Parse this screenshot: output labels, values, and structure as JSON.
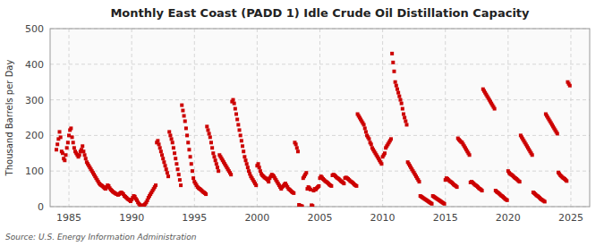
{
  "chart_data": {
    "type": "scatter",
    "title": "Monthly East Coast (PADD 1) Idle Crude Oil Distillation Capacity",
    "ylabel": "Thousand Barrels per Day",
    "source": "Source: U.S. Energy Information Administration",
    "color": "#cc0000",
    "marker": "square",
    "grid": true,
    "xlim": [
      1983.5,
      2026.5
    ],
    "ylim": [
      0,
      500
    ],
    "xticks": [
      1985,
      1990,
      1995,
      2000,
      2005,
      2010,
      2015,
      2020,
      2025
    ],
    "yticks": [
      0,
      100,
      200,
      300,
      400,
      500
    ],
    "x": [
      1984,
      1984.0833333333333,
      1984.1666666666667,
      1984.25,
      1984.3333333333333,
      1984.4166666666667,
      1984.5,
      1984.5833333333333,
      1984.6666666666667,
      1984.75,
      1984.8333333333333,
      1984.9166666666667,
      1985,
      1985.0833333333333,
      1985.1666666666667,
      1985.25,
      1985.3333333333333,
      1985.4166666666667,
      1985.5,
      1985.5833333333333,
      1985.6666666666667,
      1985.75,
      1985.8333333333333,
      1985.9166666666667,
      1986,
      1986.0833333333333,
      1986.1666666666667,
      1986.25,
      1986.3333333333333,
      1986.4166666666667,
      1986.5,
      1986.5833333333333,
      1986.6666666666667,
      1986.75,
      1986.8333333333333,
      1986.9166666666667,
      1987,
      1987.0833333333333,
      1987.1666666666667,
      1987.25,
      1987.3333333333333,
      1987.4166666666667,
      1987.5,
      1987.5833333333333,
      1987.6666666666667,
      1987.75,
      1987.8333333333333,
      1987.9166666666667,
      1988,
      1988.0833333333333,
      1988.1666666666667,
      1988.25,
      1988.3333333333333,
      1988.4166666666667,
      1988.5,
      1988.5833333333333,
      1988.6666666666667,
      1988.75,
      1988.8333333333333,
      1988.9166666666667,
      1989,
      1989.0833333333333,
      1989.1666666666667,
      1989.25,
      1989.3333333333333,
      1989.4166666666667,
      1989.5,
      1989.5833333333333,
      1989.6666666666667,
      1989.75,
      1989.8333333333333,
      1989.9166666666667,
      1990,
      1990.0833333333333,
      1990.1666666666667,
      1990.25,
      1990.3333333333333,
      1990.4166666666667,
      1990.5,
      1990.5833333333333,
      1990.6666666666667,
      1990.75,
      1990.8333333333333,
      1990.9166666666667,
      1991,
      1991.0833333333333,
      1991.1666666666667,
      1991.25,
      1991.3333333333333,
      1991.4166666666667,
      1991.5,
      1991.5833333333333,
      1991.6666666666667,
      1991.75,
      1991.8333333333333,
      1991.9166666666667,
      1992,
      1992.0833333333333,
      1992.1666666666667,
      1992.25,
      1992.3333333333333,
      1992.4166666666667,
      1992.5,
      1992.5833333333333,
      1992.6666666666667,
      1992.75,
      1992.8333333333333,
      1992.9166666666667,
      1993,
      1993.0833333333333,
      1993.1666666666667,
      1993.25,
      1993.3333333333333,
      1993.4166666666667,
      1993.5,
      1993.5833333333333,
      1993.6666666666667,
      1993.75,
      1993.8333333333333,
      1993.9166666666667,
      1994,
      1994.0833333333333,
      1994.1666666666667,
      1994.25,
      1994.3333333333333,
      1994.4166666666667,
      1994.5,
      1994.5833333333333,
      1994.6666666666667,
      1994.75,
      1994.8333333333333,
      1994.9166666666667,
      1995,
      1995.0833333333333,
      1995.1666666666667,
      1995.25,
      1995.3333333333333,
      1995.4166666666667,
      1995.5,
      1995.5833333333333,
      1995.6666666666667,
      1995.75,
      1995.8333333333333,
      1995.9166666666667,
      1996,
      1996.0833333333333,
      1996.1666666666667,
      1996.25,
      1996.3333333333333,
      1996.4166666666667,
      1996.5,
      1996.5833333333333,
      1996.6666666666667,
      1996.75,
      1996.8333333333333,
      1996.9166666666667,
      1997,
      1997.0833333333333,
      1997.1666666666667,
      1997.25,
      1997.3333333333333,
      1997.4166666666667,
      1997.5,
      1997.5833333333333,
      1997.6666666666667,
      1997.75,
      1997.8333333333333,
      1997.9166666666667,
      1998,
      1998.0833333333333,
      1998.1666666666667,
      1998.25,
      1998.3333333333333,
      1998.4166666666667,
      1998.5,
      1998.5833333333333,
      1998.6666666666667,
      1998.75,
      1998.8333333333333,
      1998.9166666666667,
      1999,
      1999.0833333333333,
      1999.1666666666667,
      1999.25,
      1999.3333333333333,
      1999.4166666666667,
      1999.5,
      1999.5833333333333,
      1999.6666666666667,
      1999.75,
      1999.8333333333333,
      1999.9166666666667,
      2000,
      2000.0833333333333,
      2000.1666666666667,
      2000.25,
      2000.3333333333333,
      2000.4166666666667,
      2000.5,
      2000.5833333333333,
      2000.6666666666667,
      2000.75,
      2000.8333333333333,
      2000.9166666666667,
      2001,
      2001.0833333333333,
      2001.1666666666667,
      2001.25,
      2001.3333333333333,
      2001.4166666666667,
      2001.5,
      2001.5833333333333,
      2001.6666666666667,
      2001.75,
      2001.8333333333333,
      2001.9166666666667,
      2002,
      2002.0833333333333,
      2002.1666666666667,
      2002.25,
      2002.3333333333333,
      2002.4166666666667,
      2002.5,
      2002.5833333333333,
      2002.6666666666667,
      2002.75,
      2002.8333333333333,
      2002.9166666666667,
      2003,
      2003.0833333333333,
      2003.1666666666667,
      2003.25,
      2003.3333333333333,
      2003.4166666666667,
      2003.5,
      2003.5833333333333,
      2003.6666666666667,
      2003.75,
      2003.8333333333333,
      2003.9166666666667,
      2004,
      2004.0833333333333,
      2004.1666666666667,
      2004.25,
      2004.3333333333333,
      2004.4166666666667,
      2004.5,
      2004.5833333333333,
      2004.6666666666667,
      2004.75,
      2004.8333333333333,
      2004.9166666666667,
      2005,
      2005.0833333333333,
      2005.1666666666667,
      2005.25,
      2005.3333333333333,
      2005.4166666666667,
      2005.5,
      2005.5833333333333,
      2005.6666666666667,
      2005.75,
      2005.8333333333333,
      2005.9166666666667,
      2006,
      2006.0833333333333,
      2006.1666666666667,
      2006.25,
      2006.3333333333333,
      2006.4166666666667,
      2006.5,
      2006.5833333333333,
      2006.6666666666667,
      2006.75,
      2006.8333333333333,
      2006.9166666666667,
      2007,
      2007.0833333333333,
      2007.1666666666667,
      2007.25,
      2007.3333333333333,
      2007.4166666666667,
      2007.5,
      2007.5833333333333,
      2007.6666666666667,
      2007.75,
      2007.8333333333333,
      2007.9166666666667,
      2008,
      2008.0833333333333,
      2008.1666666666667,
      2008.25,
      2008.3333333333333,
      2008.4166666666667,
      2008.5,
      2008.5833333333333,
      2008.6666666666667,
      2008.75,
      2008.8333333333333,
      2008.9166666666667,
      2009,
      2009.0833333333333,
      2009.1666666666667,
      2009.25,
      2009.3333333333333,
      2009.4166666666667,
      2009.5,
      2009.5833333333333,
      2009.6666666666667,
      2009.75,
      2009.8333333333333,
      2009.9166666666667,
      2010,
      2010.0833333333333,
      2010.1666666666667,
      2010.25,
      2010.3333333333333,
      2010.4166666666667,
      2010.5,
      2010.5833333333333,
      2010.6666666666667,
      2010.75,
      2010.8333333333333,
      2010.9166666666667,
      2011,
      2011.0833333333333,
      2011.1666666666667,
      2011.25,
      2011.3333333333333,
      2011.4166666666667,
      2011.5,
      2011.5833333333333,
      2011.6666666666667,
      2011.75,
      2011.8333333333333,
      2011.9166666666667,
      2012,
      2012.0833333333333,
      2012.1666666666667,
      2012.25,
      2012.3333333333333,
      2012.4166666666667,
      2012.5,
      2012.5833333333333,
      2012.6666666666667,
      2012.75,
      2012.8333333333333,
      2012.9166666666667,
      2013,
      2013.0833333333333,
      2013.1666666666667,
      2013.25,
      2013.3333333333333,
      2013.4166666666667,
      2013.5,
      2013.5833333333333,
      2013.6666666666667,
      2013.75,
      2013.8333333333333,
      2013.9166666666667,
      2014,
      2014.0833333333333,
      2014.1666666666667,
      2014.25,
      2014.3333333333333,
      2014.4166666666667,
      2014.5,
      2014.5833333333333,
      2014.6666666666667,
      2014.75,
      2014.8333333333333,
      2014.9166666666667,
      2015,
      2015.0833333333333,
      2015.1666666666667,
      2015.25,
      2015.3333333333333,
      2015.4166666666667,
      2015.5,
      2015.5833333333333,
      2015.6666666666667,
      2015.75,
      2015.8333333333333,
      2015.9166666666667,
      2016,
      2016.0833333333333,
      2016.1666666666667,
      2016.25,
      2016.3333333333333,
      2016.4166666666667,
      2016.5,
      2016.5833333333333,
      2016.6666666666667,
      2016.75,
      2016.8333333333333,
      2016.9166666666667,
      2017,
      2017.0833333333333,
      2017.1666666666667,
      2017.25,
      2017.3333333333333,
      2017.4166666666667,
      2017.5,
      2017.5833333333333,
      2017.6666666666667,
      2017.75,
      2017.8333333333333,
      2017.9166666666667,
      2018,
      2018.0833333333333,
      2018.1666666666667,
      2018.25,
      2018.3333333333333,
      2018.4166666666667,
      2018.5,
      2018.5833333333333,
      2018.6666666666667,
      2018.75,
      2018.8333333333333,
      2018.9166666666667,
      2019,
      2019.0833333333333,
      2019.1666666666667,
      2019.25,
      2019.3333333333333,
      2019.4166666666667,
      2019.5,
      2019.5833333333333,
      2019.6666666666667,
      2019.75,
      2019.8333333333333,
      2019.9166666666667,
      2020,
      2020.0833333333333,
      2020.1666666666667,
      2020.25,
      2020.3333333333333,
      2020.4166666666667,
      2020.5,
      2020.5833333333333,
      2020.6666666666667,
      2020.75,
      2020.8333333333333,
      2020.9166666666667,
      2021,
      2021.0833333333333,
      2021.1666666666667,
      2021.25,
      2021.3333333333333,
      2021.4166666666667,
      2021.5,
      2021.5833333333333,
      2021.6666666666667,
      2021.75,
      2021.8333333333333,
      2021.9166666666667,
      2022,
      2022.0833333333333,
      2022.1666666666667,
      2022.25,
      2022.3333333333333,
      2022.4166666666667,
      2022.5,
      2022.5833333333333,
      2022.6666666666667,
      2022.75,
      2022.8333333333333,
      2022.9166666666667,
      2023,
      2023.0833333333333,
      2023.1666666666667,
      2023.25,
      2023.3333333333333,
      2023.4166666666667,
      2023.5,
      2023.5833333333333,
      2023.6666666666667,
      2023.75,
      2023.8333333333333,
      2023.9166666666667,
      2024,
      2024.0833333333333,
      2024.1666666666667,
      2024.25,
      2024.3333333333333,
      2024.4166666666667,
      2024.5,
      2024.5833333333333,
      2024.6666666666667,
      2024.75,
      2024.8333333333333,
      2024.9166666666667
    ],
    "values": [
      160,
      175,
      190,
      210,
      195,
      155,
      150,
      135,
      130,
      145,
      165,
      180,
      200,
      215,
      220,
      195,
      180,
      165,
      155,
      150,
      145,
      140,
      145,
      155,
      160,
      170,
      155,
      145,
      135,
      125,
      120,
      115,
      110,
      105,
      100,
      95,
      90,
      85,
      80,
      75,
      70,
      65,
      62,
      60,
      58,
      55,
      52,
      50,
      55,
      60,
      58,
      52,
      48,
      45,
      42,
      40,
      38,
      36,
      35,
      33,
      35,
      38,
      40,
      38,
      35,
      30,
      28,
      25,
      22,
      20,
      18,
      15,
      20,
      25,
      30,
      28,
      22,
      18,
      12,
      8,
      5,
      3,
      2,
      1,
      5,
      8,
      12,
      18,
      25,
      30,
      35,
      40,
      45,
      50,
      55,
      60,
      180,
      185,
      175,
      165,
      155,
      145,
      135,
      125,
      115,
      105,
      95,
      85,
      210,
      200,
      190,
      180,
      165,
      150,
      135,
      120,
      105,
      90,
      75,
      60,
      285,
      270,
      255,
      240,
      220,
      200,
      180,
      160,
      140,
      120,
      100,
      80,
      70,
      65,
      60,
      55,
      52,
      50,
      48,
      45,
      42,
      40,
      38,
      35,
      225,
      215,
      205,
      195,
      180,
      165,
      150,
      140,
      130,
      120,
      110,
      100,
      145,
      140,
      135,
      130,
      125,
      120,
      115,
      110,
      105,
      100,
      95,
      90,
      295,
      300,
      290,
      275,
      260,
      245,
      230,
      215,
      200,
      185,
      170,
      155,
      140,
      130,
      120,
      110,
      100,
      92,
      85,
      80,
      75,
      70,
      65,
      60,
      115,
      120,
      110,
      100,
      92,
      88,
      85,
      82,
      80,
      78,
      75,
      70,
      80,
      85,
      90,
      88,
      85,
      80,
      75,
      70,
      65,
      60,
      55,
      50,
      55,
      58,
      62,
      65,
      60,
      55,
      50,
      48,
      45,
      42,
      40,
      38,
      180,
      175,
      165,
      155,
      5,
      3,
      2,
      1,
      80,
      85,
      90,
      95,
      50,
      55,
      52,
      48,
      4,
      2,
      45,
      50,
      48,
      52,
      55,
      58,
      80,
      85,
      82,
      78,
      75,
      72,
      70,
      68,
      65,
      62,
      60,
      58,
      88,
      90,
      88,
      85,
      82,
      80,
      78,
      75,
      72,
      70,
      68,
      65,
      80,
      82,
      80,
      78,
      75,
      72,
      70,
      68,
      65,
      62,
      60,
      58,
      260,
      255,
      250,
      245,
      240,
      235,
      230,
      220,
      210,
      200,
      195,
      190,
      180,
      175,
      165,
      160,
      155,
      150,
      145,
      140,
      135,
      130,
      125,
      120,
      140,
      145,
      150,
      165,
      170,
      175,
      180,
      185,
      190,
      430,
      405,
      380,
      350,
      340,
      330,
      320,
      310,
      300,
      290,
      275,
      260,
      250,
      240,
      230,
      125,
      120,
      115,
      110,
      105,
      100,
      95,
      90,
      85,
      80,
      75,
      70,
      30,
      28,
      26,
      24,
      22,
      20,
      18,
      16,
      14,
      12,
      10,
      8,
      30,
      28,
      26,
      24,
      22,
      20,
      18,
      16,
      14,
      12,
      10,
      8,
      75,
      80,
      78,
      75,
      72,
      70,
      68,
      65,
      62,
      60,
      58,
      55,
      192,
      188,
      185,
      182,
      180,
      175,
      170,
      165,
      160,
      155,
      150,
      145,
      68,
      70,
      68,
      65,
      62,
      60,
      58,
      55,
      52,
      50,
      48,
      45,
      330,
      325,
      320,
      315,
      310,
      305,
      300,
      295,
      290,
      285,
      280,
      275,
      45,
      42,
      40,
      38,
      35,
      32,
      30,
      28,
      25,
      22,
      20,
      18,
      100,
      95,
      92,
      90,
      88,
      85,
      82,
      80,
      78,
      75,
      72,
      70,
      200,
      195,
      190,
      185,
      180,
      175,
      170,
      165,
      160,
      155,
      150,
      145,
      40,
      38,
      35,
      32,
      30,
      28,
      25,
      22,
      20,
      18,
      16,
      14,
      260,
      255,
      250,
      245,
      240,
      235,
      230,
      225,
      220,
      215,
      210,
      205,
      96,
      92,
      88,
      85,
      82,
      80,
      78,
      75,
      72,
      350,
      345,
      340
    ]
  }
}
